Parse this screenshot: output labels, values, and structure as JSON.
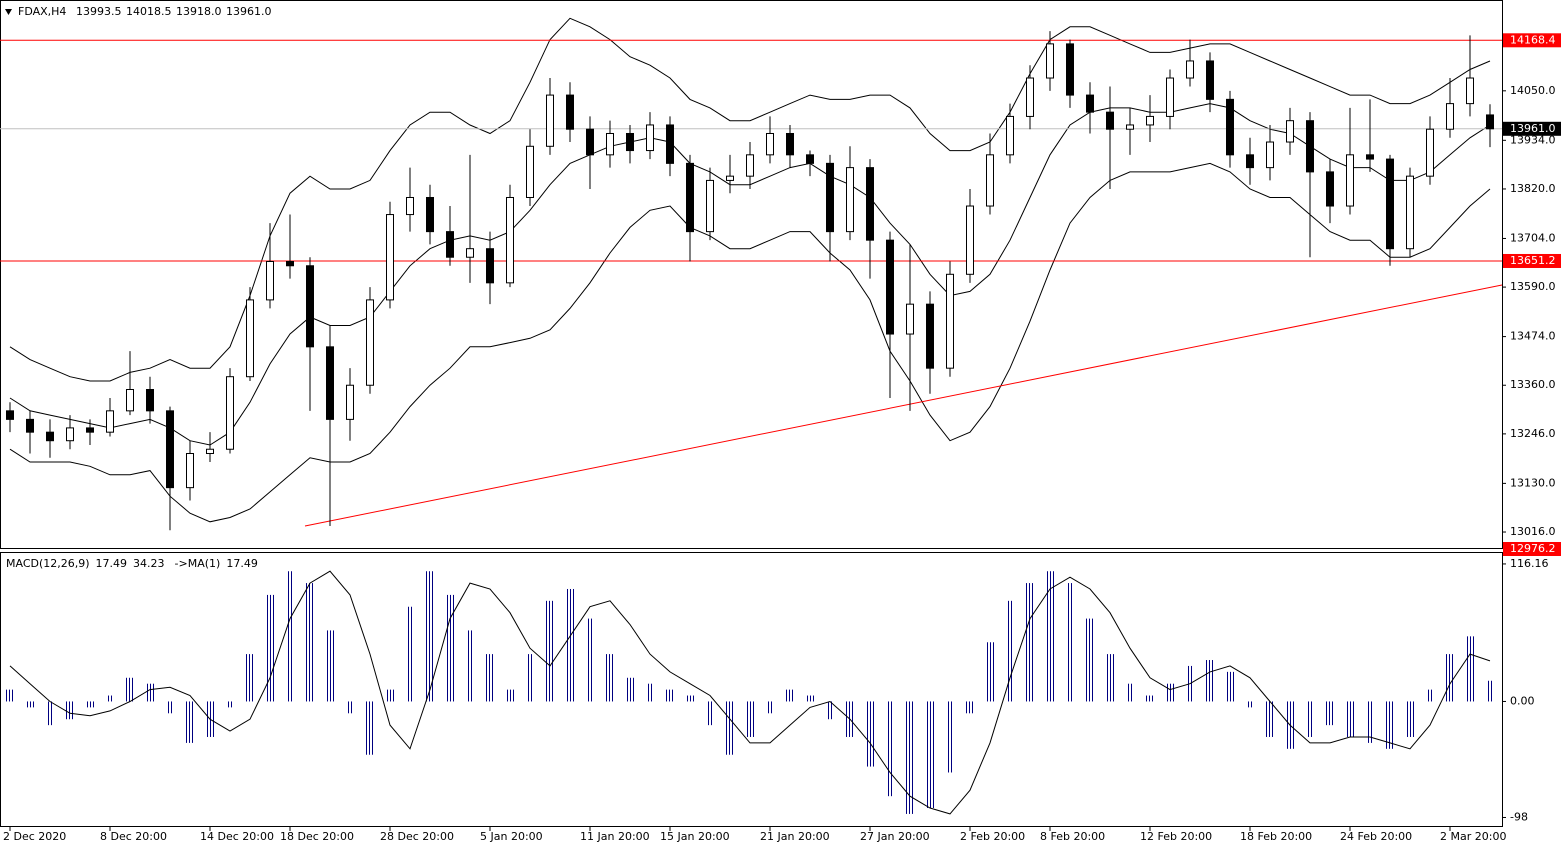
{
  "chart_data": [
    {
      "type": "candlestick",
      "header": {
        "symbol": "FDAX,H4",
        "values": [
          13993.5,
          14018.5,
          13918.0,
          13961.0
        ],
        "value_labels": [
          "13993.5",
          "14018.5",
          "13918.0",
          "13961.0"
        ]
      },
      "categories": [
        "2 Dec 2020",
        null,
        null,
        null,
        null,
        "8 Dec 20:00",
        null,
        null,
        null,
        null,
        "14 Dec 20:00",
        null,
        null,
        null,
        "18 Dec 20:00",
        null,
        null,
        null,
        null,
        "28 Dec 20:00",
        null,
        null,
        null,
        null,
        "5 Jan 20:00",
        null,
        null,
        null,
        null,
        "11 Jan 20:00",
        null,
        null,
        null,
        "15 Jan 20:00",
        null,
        null,
        null,
        null,
        "21 Jan 20:00",
        null,
        null,
        null,
        null,
        "27 Jan 20:00",
        null,
        null,
        null,
        null,
        "2 Feb 20:00",
        null,
        null,
        null,
        "8 Feb 20:00",
        null,
        null,
        null,
        null,
        "12 Feb 20:00",
        null,
        null,
        null,
        null,
        "18 Feb 20:00",
        null,
        null,
        null,
        null,
        "24 Feb 20:00",
        null,
        null,
        null,
        null,
        "2 Mar 20:00",
        null,
        null
      ],
      "open": [
        13300,
        13280,
        13250,
        13230,
        13260,
        13250,
        13300,
        13350,
        13300,
        13120,
        13200,
        13210,
        13380,
        13560,
        13650,
        13640,
        13450,
        13280,
        13360,
        13560,
        13760,
        13800,
        13720,
        13660,
        13680,
        13600,
        13800,
        13920,
        14040,
        13960,
        13900,
        13950,
        13910,
        13970,
        13880,
        13720,
        13840,
        13850,
        13900,
        13950,
        13900,
        13880,
        13720,
        13870,
        13700,
        13480,
        13550,
        13400,
        13620,
        13780,
        13900,
        13990,
        14080,
        14160,
        14040,
        14000,
        13960,
        13970,
        13990,
        14080,
        14120,
        14030,
        13900,
        13870,
        13930,
        13980,
        13860,
        13780,
        13900,
        13890,
        13680,
        13850,
        13960,
        14020,
        13993.5
      ],
      "high": [
        13320,
        13300,
        13280,
        13290,
        13280,
        13330,
        13440,
        13380,
        13310,
        13230,
        13250,
        13400,
        13590,
        13740,
        13760,
        13660,
        13500,
        13400,
        13590,
        13790,
        13870,
        13830,
        13780,
        13900,
        13720,
        13830,
        13960,
        14080,
        14070,
        13990,
        13980,
        13970,
        14000,
        13990,
        13900,
        13870,
        13900,
        13930,
        13990,
        13970,
        13910,
        13900,
        13920,
        13890,
        13720,
        13690,
        13580,
        13650,
        13820,
        13950,
        14020,
        14110,
        14190,
        14170,
        14070,
        14060,
        14010,
        14040,
        14100,
        14170,
        14140,
        14050,
        13940,
        13970,
        14010,
        14000,
        13890,
        14010,
        14030,
        13900,
        13870,
        13990,
        14080,
        14180,
        14018.5
      ],
      "low": [
        13250,
        13200,
        13190,
        13210,
        13220,
        13240,
        13290,
        13270,
        13020,
        13090,
        13180,
        13200,
        13370,
        13540,
        13610,
        13300,
        13030,
        13230,
        13340,
        13540,
        13720,
        13690,
        13640,
        13600,
        13550,
        13590,
        13780,
        13900,
        13930,
        13820,
        13870,
        13880,
        13890,
        13850,
        13650,
        13700,
        13810,
        13820,
        13880,
        13870,
        13850,
        13650,
        13700,
        13610,
        13330,
        13300,
        13340,
        13380,
        13600,
        13760,
        13880,
        13960,
        14050,
        14010,
        13950,
        13820,
        13900,
        13930,
        13960,
        14060,
        14000,
        13870,
        13830,
        13840,
        13900,
        13660,
        13740,
        13760,
        13860,
        13640,
        13660,
        13830,
        13940,
        13990,
        13918.0
      ],
      "close": [
        13280,
        13250,
        13230,
        13260,
        13250,
        13300,
        13350,
        13300,
        13120,
        13200,
        13210,
        13380,
        13560,
        13650,
        13640,
        13450,
        13280,
        13360,
        13560,
        13760,
        13800,
        13720,
        13660,
        13680,
        13600,
        13800,
        13920,
        14040,
        13960,
        13900,
        13950,
        13910,
        13970,
        13880,
        13720,
        13840,
        13850,
        13900,
        13950,
        13900,
        13880,
        13720,
        13870,
        13700,
        13480,
        13550,
        13400,
        13620,
        13780,
        13900,
        13990,
        14080,
        14160,
        14040,
        14000,
        13960,
        13970,
        13990,
        14080,
        14120,
        14030,
        13900,
        13870,
        13930,
        13980,
        13860,
        13780,
        13900,
        13890,
        13680,
        13850,
        13960,
        14020,
        14080,
        13961.0
      ],
      "bands": {
        "color": "#000000",
        "upper": [
          13450,
          13420,
          13400,
          13380,
          13370,
          13370,
          13390,
          13400,
          13420,
          13400,
          13400,
          13450,
          13570,
          13710,
          13810,
          13850,
          13820,
          13820,
          13840,
          13910,
          13970,
          14000,
          14000,
          13970,
          13950,
          13980,
          14070,
          14170,
          14220,
          14200,
          14170,
          14130,
          14110,
          14080,
          14030,
          14010,
          13980,
          13980,
          14000,
          14020,
          14040,
          14030,
          14030,
          14040,
          14040,
          14010,
          13950,
          13910,
          13910,
          13930,
          14000,
          14090,
          14170,
          14200,
          14200,
          14180,
          14160,
          14140,
          14140,
          14150,
          14160,
          14160,
          14140,
          14120,
          14100,
          14080,
          14060,
          14040,
          14040,
          14020,
          14020,
          14040,
          14070,
          14100,
          14120
        ],
        "middle": [
          13330,
          13300,
          13290,
          13280,
          13270,
          13260,
          13270,
          13280,
          13260,
          13230,
          13220,
          13250,
          13320,
          13410,
          13480,
          13520,
          13500,
          13500,
          13520,
          13580,
          13640,
          13680,
          13700,
          13710,
          13700,
          13720,
          13770,
          13830,
          13880,
          13900,
          13920,
          13930,
          13940,
          13930,
          13880,
          13860,
          13830,
          13830,
          13850,
          13870,
          13880,
          13850,
          13830,
          13800,
          13740,
          13690,
          13620,
          13570,
          13580,
          13620,
          13700,
          13800,
          13900,
          13970,
          14000,
          14010,
          14010,
          14000,
          14000,
          14010,
          14020,
          14010,
          13980,
          13960,
          13950,
          13920,
          13890,
          13870,
          13870,
          13840,
          13840,
          13860,
          13900,
          13940,
          13970
        ],
        "lower": [
          13210,
          13180,
          13180,
          13180,
          13170,
          13150,
          13150,
          13160,
          13100,
          13060,
          13040,
          13050,
          13070,
          13110,
          13150,
          13190,
          13180,
          13180,
          13200,
          13250,
          13310,
          13360,
          13400,
          13450,
          13450,
          13460,
          13470,
          13490,
          13540,
          13600,
          13670,
          13730,
          13770,
          13780,
          13730,
          13710,
          13680,
          13680,
          13700,
          13720,
          13720,
          13670,
          13630,
          13560,
          13440,
          13370,
          13290,
          13230,
          13250,
          13310,
          13400,
          13510,
          13630,
          13740,
          13800,
          13840,
          13860,
          13860,
          13860,
          13870,
          13880,
          13860,
          13820,
          13800,
          13800,
          13760,
          13720,
          13700,
          13700,
          13660,
          13660,
          13680,
          13730,
          13780,
          13820
        ]
      },
      "levels": [
        {
          "value": 14168.4,
          "label": "14168.4"
        },
        {
          "value": 13651.2,
          "label": "13651.2"
        }
      ],
      "level_color": "#ff0000",
      "trendline": [
        13030,
        13595
      ],
      "last_price": {
        "value": 13961.0,
        "label": "13961.0"
      },
      "ylim": [
        12976.2,
        14260.5
      ],
      "yticks": [
        {
          "value": 14050,
          "label": "14050.0"
        },
        {
          "value": 13934,
          "label": "13934.0"
        },
        {
          "value": 13820,
          "label": "13820.0"
        },
        {
          "value": 13704,
          "label": "13704.0"
        },
        {
          "value": 13590,
          "label": "13590.0"
        },
        {
          "value": 13474,
          "label": "13474.0"
        },
        {
          "value": 13360,
          "label": "13360.0"
        },
        {
          "value": 13246,
          "label": "13246.0"
        },
        {
          "value": 13130,
          "label": "13130.0"
        },
        {
          "value": 13016,
          "label": "13016.0"
        }
      ]
    },
    {
      "type": "macd",
      "title": "MACD(12,26,9)",
      "header_values": [
        17.49,
        34.23
      ],
      "signal_title": "->MA(1)",
      "signal_header_value": 17.49,
      "histogram": {
        "color": "#000080",
        "values": [
          10,
          -5,
          -20,
          -15,
          -5,
          5,
          20,
          15,
          -10,
          -35,
          -30,
          -5,
          40,
          90,
          110,
          100,
          60,
          -10,
          -45,
          10,
          80,
          110,
          90,
          60,
          40,
          10,
          40,
          85,
          95,
          70,
          40,
          20,
          15,
          10,
          5,
          -20,
          -45,
          -30,
          -10,
          10,
          5,
          -15,
          -30,
          -55,
          -80,
          -95,
          -90,
          -60,
          -10,
          50,
          85,
          100,
          110,
          100,
          70,
          40,
          15,
          5,
          15,
          30,
          35,
          25,
          -5,
          -30,
          -40,
          -30,
          -20,
          -30,
          -35,
          -40,
          -30,
          10,
          40,
          55,
          17.49
        ]
      },
      "signal": {
        "color": "#000000",
        "values": [
          30,
          15,
          0,
          -10,
          -12,
          -8,
          0,
          10,
          12,
          5,
          -15,
          -25,
          -15,
          20,
          70,
          100,
          110,
          90,
          40,
          -20,
          -40,
          10,
          70,
          100,
          95,
          75,
          45,
          30,
          55,
          80,
          85,
          65,
          40,
          25,
          15,
          5,
          -15,
          -35,
          -35,
          -20,
          -5,
          0,
          -15,
          -35,
          -60,
          -80,
          -90,
          -95,
          -75,
          -35,
          20,
          70,
          95,
          105,
          95,
          75,
          45,
          20,
          10,
          15,
          25,
          30,
          20,
          0,
          -20,
          -35,
          -35,
          -30,
          -30,
          -35,
          -40,
          -20,
          15,
          40,
          34.23
        ]
      },
      "ylim": [
        -105.2,
        125.4
      ],
      "yticks": [
        116.16,
        {
          "value": 0,
          "label": "0.00"
        },
        -98
      ]
    }
  ]
}
